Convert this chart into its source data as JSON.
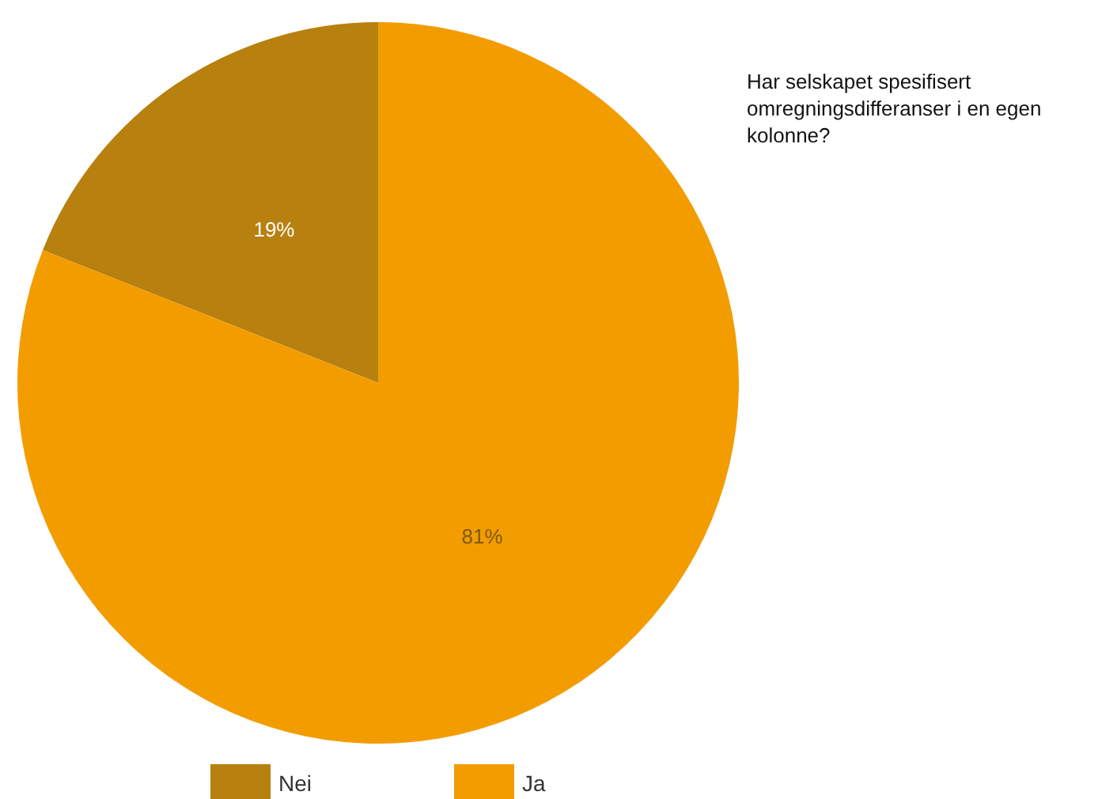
{
  "chart_data": {
    "type": "pie",
    "title": "Har selskapet spesifisert omregningsdifferanser i en egen kolonne?",
    "categories": [
      "Nei",
      "Ja"
    ],
    "values": [
      19,
      81
    ],
    "colors": [
      "#b7800f",
      "#f39c00"
    ],
    "value_labels": [
      "19%",
      "81%"
    ],
    "legend": "bottom"
  }
}
